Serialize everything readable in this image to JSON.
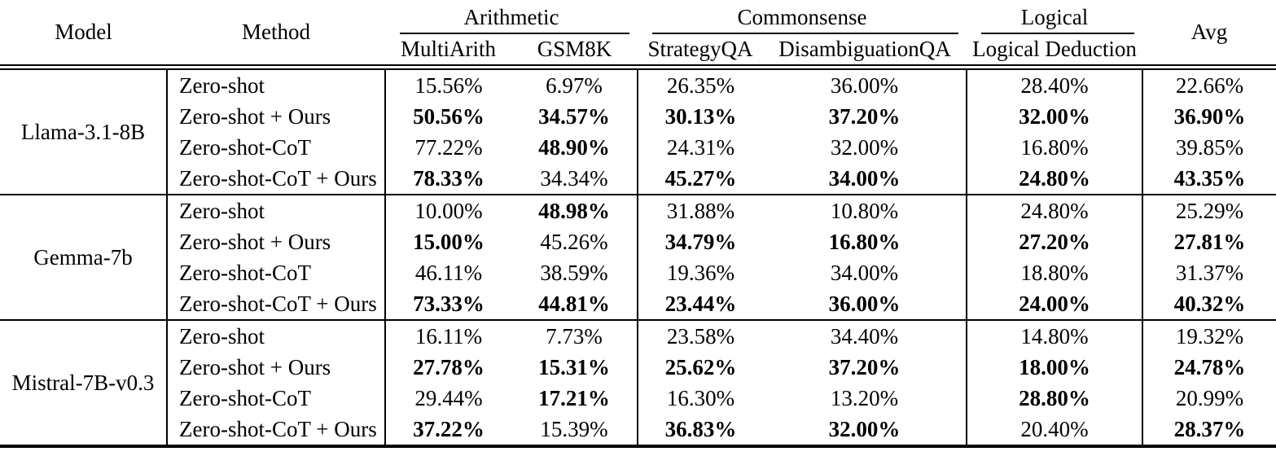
{
  "table": {
    "header": {
      "model": "Model",
      "method": "Method",
      "avg": "Avg",
      "groups": [
        {
          "label": "Arithmetic",
          "columns": [
            "MultiArith",
            "GSM8K"
          ]
        },
        {
          "label": "Commonsense",
          "columns": [
            "StrategyQA",
            "DisambiguationQA"
          ]
        },
        {
          "label": "Logical",
          "columns": [
            "Logical Deduction"
          ]
        }
      ]
    },
    "blocks": [
      {
        "model": "Llama-3.1-8B",
        "rows": [
          {
            "method": "Zero-shot",
            "values": [
              "15.56%",
              "6.97%",
              "26.35%",
              "36.00%",
              "28.40%",
              "22.66%"
            ],
            "bold": [
              false,
              false,
              false,
              false,
              false,
              false
            ]
          },
          {
            "method": "Zero-shot + Ours",
            "values": [
              "50.56%",
              "34.57%",
              "30.13%",
              "37.20%",
              "32.00%",
              "36.90%"
            ],
            "bold": [
              true,
              true,
              true,
              true,
              true,
              true
            ]
          },
          {
            "method": "Zero-shot-CoT",
            "values": [
              "77.22%",
              "48.90%",
              "24.31%",
              "32.00%",
              "16.80%",
              "39.85%"
            ],
            "bold": [
              false,
              true,
              false,
              false,
              false,
              false
            ]
          },
          {
            "method": "Zero-shot-CoT + Ours",
            "values": [
              "78.33%",
              "34.34%",
              "45.27%",
              "34.00%",
              "24.80%",
              "43.35%"
            ],
            "bold": [
              true,
              false,
              true,
              true,
              true,
              true
            ]
          }
        ]
      },
      {
        "model": "Gemma-7b",
        "rows": [
          {
            "method": "Zero-shot",
            "values": [
              "10.00%",
              "48.98%",
              "31.88%",
              "10.80%",
              "24.80%",
              "25.29%"
            ],
            "bold": [
              false,
              true,
              false,
              false,
              false,
              false
            ]
          },
          {
            "method": "Zero-shot + Ours",
            "values": [
              "15.00%",
              "45.26%",
              "34.79%",
              "16.80%",
              "27.20%",
              "27.81%"
            ],
            "bold": [
              true,
              false,
              true,
              true,
              true,
              true
            ]
          },
          {
            "method": "Zero-shot-CoT",
            "values": [
              "46.11%",
              "38.59%",
              "19.36%",
              "34.00%",
              "18.80%",
              "31.37%"
            ],
            "bold": [
              false,
              false,
              false,
              false,
              false,
              false
            ]
          },
          {
            "method": "Zero-shot-CoT + Ours",
            "values": [
              "73.33%",
              "44.81%",
              "23.44%",
              "36.00%",
              "24.00%",
              "40.32%"
            ],
            "bold": [
              true,
              true,
              true,
              true,
              true,
              true
            ]
          }
        ]
      },
      {
        "model": "Mistral-7B-v0.3",
        "rows": [
          {
            "method": "Zero-shot",
            "values": [
              "16.11%",
              "7.73%",
              "23.58%",
              "34.40%",
              "14.80%",
              "19.32%"
            ],
            "bold": [
              false,
              false,
              false,
              false,
              false,
              false
            ]
          },
          {
            "method": "Zero-shot + Ours",
            "values": [
              "27.78%",
              "15.31%",
              "25.62%",
              "37.20%",
              "18.00%",
              "24.78%"
            ],
            "bold": [
              true,
              true,
              true,
              true,
              true,
              true
            ]
          },
          {
            "method": "Zero-shot-CoT",
            "values": [
              "29.44%",
              "17.21%",
              "16.30%",
              "13.20%",
              "28.80%",
              "20.99%"
            ],
            "bold": [
              false,
              true,
              false,
              false,
              true,
              false
            ]
          },
          {
            "method": "Zero-shot-CoT + Ours",
            "values": [
              "37.22%",
              "15.39%",
              "36.83%",
              "32.00%",
              "20.40%",
              "28.37%"
            ],
            "bold": [
              true,
              false,
              true,
              true,
              false,
              true
            ]
          }
        ]
      }
    ]
  }
}
